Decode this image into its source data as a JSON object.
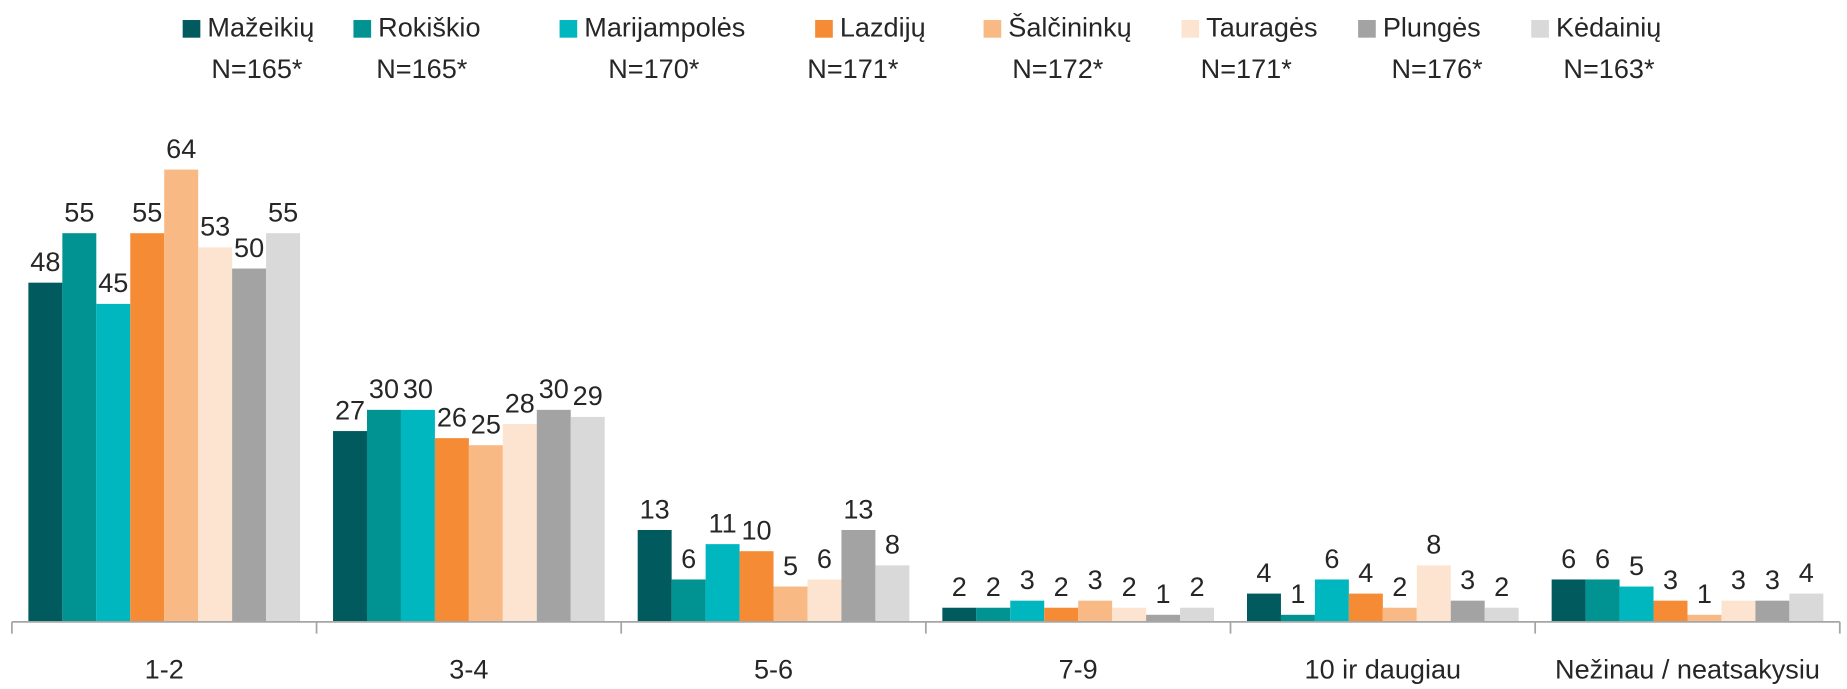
{
  "chart_data": {
    "type": "bar",
    "categories": [
      "1-2",
      "3-4",
      "5-6",
      "7-9",
      "10 ir daugiau",
      "Nežinau / neatsakysiu"
    ],
    "series": [
      {
        "name": "Mažeikių",
        "note": "N=165*",
        "color": "#005a5e",
        "values": [
          48,
          27,
          13,
          2,
          4,
          6
        ]
      },
      {
        "name": "Rokiškio",
        "note": "N=165*",
        "color": "#009391",
        "values": [
          55,
          30,
          6,
          2,
          1,
          6
        ]
      },
      {
        "name": "Marijampolės",
        "note": "N=170*",
        "color": "#00b7c0",
        "values": [
          45,
          30,
          11,
          3,
          6,
          5
        ]
      },
      {
        "name": "Lazdijų",
        "note": "N=171*",
        "color": "#f58b35",
        "values": [
          55,
          26,
          10,
          2,
          4,
          3
        ]
      },
      {
        "name": "Šalčininkų",
        "note": "N=172*",
        "color": "#f9b984",
        "values": [
          64,
          25,
          5,
          3,
          2,
          1
        ]
      },
      {
        "name": "Tauragės",
        "note": "N=171*",
        "color": "#fde4d1",
        "values": [
          53,
          28,
          6,
          2,
          8,
          3
        ]
      },
      {
        "name": "Plungės",
        "note": "N=176*",
        "color": "#a3a3a3",
        "values": [
          50,
          30,
          13,
          1,
          3,
          3
        ]
      },
      {
        "name": "Kėdainių",
        "note": "N=163*",
        "color": "#d9d9d9",
        "values": [
          55,
          29,
          8,
          2,
          2,
          4
        ]
      }
    ],
    "ylim": [
      0,
      64
    ]
  }
}
